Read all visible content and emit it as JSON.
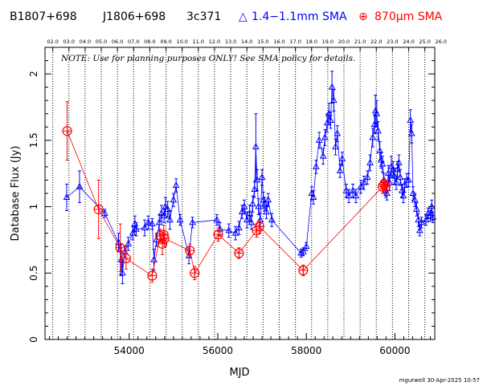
{
  "header": {
    "source_names": [
      "B1807+698",
      "J1806+698",
      "3c371"
    ],
    "legend": [
      {
        "symbol": "△",
        "label": "1.4−1.1mm SMA",
        "color": "#0000ff"
      },
      {
        "symbol": "⊕",
        "label": "870μm SMA",
        "color": "#ff0000"
      }
    ]
  },
  "footer": {
    "credit": "mgurwell 30-Apr-2025 10:57"
  },
  "chart_data": {
    "type": "scatter",
    "title": "",
    "xlabel": "MJD",
    "ylabel": "Database Flux (Jy)",
    "xlim": [
      52100,
      60900
    ],
    "ylim": [
      0,
      2.2
    ],
    "x_ticks": [
      54000,
      56000,
      58000,
      60000
    ],
    "y_ticks": [
      0,
      0.5,
      1,
      1.5,
      2
    ],
    "y_tick_labels": [
      "0",
      "0.5",
      "1",
      "1.5",
      "2"
    ],
    "x_tick_labels": [
      "54000",
      "56000",
      "58000",
      "60000"
    ],
    "top_axis_labels": [
      "02.0",
      "03.0",
      "04.0",
      "05.0",
      "06.0",
      "07.0",
      "08.0",
      "09.0",
      "10.0",
      "11.0",
      "12.0",
      "13.0",
      "14.0",
      "15.0",
      "16.0",
      "17.0",
      "18.0",
      "19.0",
      "20.0",
      "21.0",
      "22.0",
      "23.0",
      "24.0",
      "25.0",
      "26.0"
    ],
    "top_axis_mjd": [
      52275,
      52640,
      53005,
      53371,
      53736,
      54101,
      54466,
      54832,
      55197,
      55562,
      55927,
      56293,
      56658,
      57023,
      57388,
      57754,
      58119,
      58484,
      58849,
      59215,
      59580,
      59945,
      60310,
      60676,
      61041
    ],
    "annotation": "NOTE: Use for planning purposes ONLY!  See SMA policy for details.",
    "grid": "vertical dotted lines at year boundaries",
    "series": [
      {
        "name": "1.4−1.1mm SMA",
        "color": "#0000ff",
        "marker": "triangle",
        "points": [
          [
            52590,
            1.07,
            0.1
          ],
          [
            52880,
            1.15,
            0.12
          ],
          [
            53450,
            0.95,
            0.03
          ],
          [
            53760,
            0.73,
            0.07
          ],
          [
            53820,
            0.6,
            0.12
          ],
          [
            53850,
            0.5,
            0.08
          ],
          [
            53900,
            0.66,
            0.04
          ],
          [
            53980,
            0.72,
            0.05
          ],
          [
            54080,
            0.8,
            0.05
          ],
          [
            54130,
            0.87,
            0.06
          ],
          [
            54160,
            0.83,
            0.05
          ],
          [
            54350,
            0.84,
            0.06
          ],
          [
            54430,
            0.88,
            0.05
          ],
          [
            54520,
            0.87,
            0.04
          ],
          [
            54560,
            0.6,
            0.08
          ],
          [
            54620,
            0.75,
            0.05
          ],
          [
            54680,
            0.88,
            0.06
          ],
          [
            54730,
            0.95,
            0.06
          ],
          [
            54790,
            0.93,
            0.05
          ],
          [
            54820,
            1.0,
            0.07
          ],
          [
            54870,
            0.98,
            0.06
          ],
          [
            54920,
            0.9,
            0.07
          ],
          [
            55000,
            1.05,
            0.05
          ],
          [
            55060,
            1.16,
            0.05
          ],
          [
            55150,
            0.9,
            0.04
          ],
          [
            55350,
            0.63,
            0.06
          ],
          [
            55430,
            0.88,
            0.04
          ],
          [
            55980,
            0.9,
            0.04
          ],
          [
            56050,
            0.83,
            0.05
          ],
          [
            56250,
            0.82,
            0.05
          ],
          [
            56400,
            0.8,
            0.05
          ],
          [
            56480,
            0.84,
            0.05
          ],
          [
            56550,
            0.96,
            0.05
          ],
          [
            56600,
            1.0,
            0.05
          ],
          [
            56660,
            0.9,
            0.06
          ],
          [
            56720,
            0.95,
            0.06
          ],
          [
            56760,
            0.88,
            0.05
          ],
          [
            56790,
            1.02,
            0.06
          ],
          [
            56830,
            1.13,
            0.06
          ],
          [
            56860,
            1.45,
            0.25
          ],
          [
            56890,
            1.2,
            0.08
          ],
          [
            56920,
            1.0,
            0.06
          ],
          [
            56960,
            0.9,
            0.05
          ],
          [
            57000,
            1.22,
            0.06
          ],
          [
            57030,
            1.05,
            0.06
          ],
          [
            57060,
            1.02,
            0.05
          ],
          [
            57100,
            0.96,
            0.05
          ],
          [
            57140,
            1.05,
            0.05
          ],
          [
            57220,
            0.9,
            0.05
          ],
          [
            57880,
            0.65,
            0.03
          ],
          [
            57930,
            0.66,
            0.03
          ],
          [
            58000,
            0.7,
            0.03
          ],
          [
            58120,
            1.1,
            0.05
          ],
          [
            58160,
            1.07,
            0.05
          ],
          [
            58220,
            1.3,
            0.05
          ],
          [
            58290,
            1.5,
            0.06
          ],
          [
            58380,
            1.38,
            0.06
          ],
          [
            58420,
            1.52,
            0.06
          ],
          [
            58470,
            1.63,
            0.07
          ],
          [
            58510,
            1.7,
            0.08
          ],
          [
            58550,
            1.65,
            0.06
          ],
          [
            58580,
            1.9,
            0.12
          ],
          [
            58620,
            1.8,
            0.08
          ],
          [
            58660,
            1.45,
            0.06
          ],
          [
            58700,
            1.55,
            0.06
          ],
          [
            58760,
            1.27,
            0.05
          ],
          [
            58810,
            1.36,
            0.05
          ],
          [
            58900,
            1.12,
            0.05
          ],
          [
            58960,
            1.08,
            0.05
          ],
          [
            59050,
            1.12,
            0.05
          ],
          [
            59120,
            1.08,
            0.05
          ],
          [
            59230,
            1.15,
            0.05
          ],
          [
            59300,
            1.18,
            0.05
          ],
          [
            59380,
            1.22,
            0.05
          ],
          [
            59440,
            1.33,
            0.06
          ],
          [
            59500,
            1.52,
            0.07
          ],
          [
            59540,
            1.62,
            0.07
          ],
          [
            59560,
            1.72,
            0.12
          ],
          [
            59590,
            1.7,
            0.1
          ],
          [
            59620,
            1.57,
            0.07
          ],
          [
            59660,
            1.42,
            0.07
          ],
          [
            59690,
            1.35,
            0.06
          ],
          [
            59720,
            1.32,
            0.06
          ],
          [
            59750,
            1.2,
            0.05
          ],
          [
            59790,
            1.12,
            0.05
          ],
          [
            59820,
            1.1,
            0.05
          ],
          [
            59850,
            1.25,
            0.06
          ],
          [
            59880,
            1.18,
            0.06
          ],
          [
            59920,
            1.3,
            0.08
          ],
          [
            59960,
            1.28,
            0.06
          ],
          [
            59990,
            1.23,
            0.06
          ],
          [
            60030,
            1.18,
            0.05
          ],
          [
            60060,
            1.28,
            0.06
          ],
          [
            60090,
            1.33,
            0.06
          ],
          [
            60120,
            1.22,
            0.06
          ],
          [
            60160,
            1.12,
            0.05
          ],
          [
            60190,
            1.08,
            0.05
          ],
          [
            60220,
            1.16,
            0.05
          ],
          [
            60270,
            1.2,
            0.05
          ],
          [
            60310,
            1.2,
            0.05
          ],
          [
            60350,
            1.65,
            0.08
          ],
          [
            60380,
            1.55,
            0.07
          ],
          [
            60410,
            1.1,
            0.05
          ],
          [
            60450,
            1.05,
            0.05
          ],
          [
            60490,
            0.98,
            0.05
          ],
          [
            60530,
            0.9,
            0.05
          ],
          [
            60560,
            0.82,
            0.04
          ],
          [
            60600,
            0.88,
            0.04
          ],
          [
            60700,
            0.9,
            0.04
          ],
          [
            60750,
            0.95,
            0.04
          ],
          [
            60800,
            0.93,
            0.04
          ],
          [
            60830,
            1.0,
            0.05
          ],
          [
            60860,
            0.92,
            0.04
          ]
        ]
      },
      {
        "name": "870μm SMA",
        "color": "#ff0000",
        "marker": "circle-plus",
        "points": [
          [
            52600,
            1.57,
            0.22
          ],
          [
            53310,
            0.98,
            0.22
          ],
          [
            53800,
            0.69,
            0.18
          ],
          [
            53930,
            0.61,
            0.08
          ],
          [
            54520,
            0.48,
            0.05
          ],
          [
            54700,
            0.78,
            0.05
          ],
          [
            54750,
            0.72,
            0.08
          ],
          [
            54780,
            0.79,
            0.07
          ],
          [
            54800,
            0.76,
            0.06
          ],
          [
            55370,
            0.67,
            0.05
          ],
          [
            55480,
            0.5,
            0.05
          ],
          [
            56010,
            0.79,
            0.05
          ],
          [
            56480,
            0.65,
            0.04
          ],
          [
            56880,
            0.82,
            0.05
          ],
          [
            56940,
            0.85,
            0.05
          ],
          [
            57930,
            0.52,
            0.04
          ],
          [
            59720,
            1.15,
            0.05
          ],
          [
            59760,
            1.17,
            0.04
          ],
          [
            59790,
            1.15,
            0.04
          ]
        ]
      }
    ]
  }
}
